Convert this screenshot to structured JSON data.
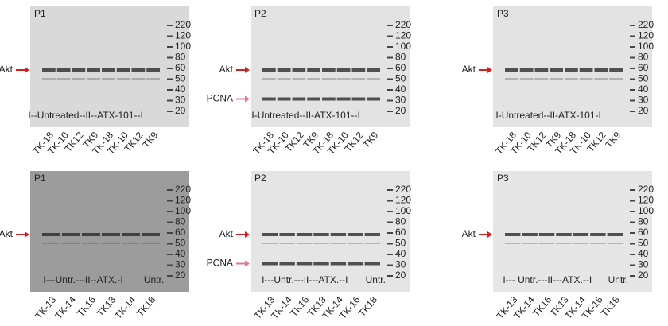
{
  "panels": [
    {
      "title": "P1",
      "markers": [
        "220",
        "120",
        "100",
        "80",
        "60",
        "50",
        "40",
        "30",
        "20"
      ],
      "targets": [
        "Akt"
      ],
      "group_labels": [
        "I--Untreated--II--ATX-101--I"
      ],
      "lanes": [
        "TK-18",
        "TK-10",
        "TK12",
        "TK9",
        "TK-18",
        "TK-10",
        "TK12",
        "TK9"
      ]
    },
    {
      "title": "P2",
      "markers": [
        "220",
        "120",
        "100",
        "80",
        "60",
        "50",
        "40",
        "30",
        "20"
      ],
      "targets": [
        "Akt",
        "PCNA"
      ],
      "group_labels": [
        "I-Untreated--II-ATX-101--I"
      ],
      "lanes": [
        "TK-18",
        "TK-10",
        "TK12",
        "TK9",
        "TK-18",
        "TK-10",
        "TK12",
        "TK9"
      ]
    },
    {
      "title": "P3",
      "markers": [
        "220",
        "120",
        "100",
        "80",
        "60",
        "50",
        "40",
        "30",
        "20"
      ],
      "targets": [
        "Akt"
      ],
      "group_labels": [
        "I-Untreated--II-ATX-101-I"
      ],
      "lanes": [
        "TK-18",
        "TK-10",
        "TK12",
        "TK9",
        "TK-18",
        "TK-10",
        "TK12",
        "TK9"
      ]
    },
    {
      "title": "P1",
      "markers": [
        "220",
        "120",
        "100",
        "80",
        "60",
        "50",
        "40",
        "30",
        "20"
      ],
      "targets": [
        "Akt"
      ],
      "group_labels": [
        "I---Untr.---II--ATX.-I",
        "Untr."
      ],
      "lanes": [
        "TK-13",
        "TK-14",
        "TK16",
        "TK13",
        "TK-14",
        "TK18"
      ]
    },
    {
      "title": "P2",
      "markers": [
        "220",
        "120",
        "100",
        "80",
        "60",
        "50",
        "40",
        "30",
        "20"
      ],
      "targets": [
        "Akt",
        "PCNA"
      ],
      "group_labels": [
        "I---Untr.---II---ATX.--I",
        "Untr."
      ],
      "lanes": [
        "TK-13",
        "TK-14",
        "TK16",
        "TK13",
        "TK-14",
        "TK-16",
        "TK18"
      ]
    },
    {
      "title": "P3",
      "markers": [
        "220",
        "120",
        "100",
        "80",
        "60",
        "50",
        "40",
        "30",
        "20"
      ],
      "targets": [
        "Akt"
      ],
      "group_labels": [
        "I--- Untr.---II---ATX.--I",
        "Untr."
      ],
      "lanes": [
        "TK-13",
        "TK-14",
        "TK16",
        "TK13",
        "TK-14",
        "TK-16",
        "TK18"
      ]
    }
  ]
}
